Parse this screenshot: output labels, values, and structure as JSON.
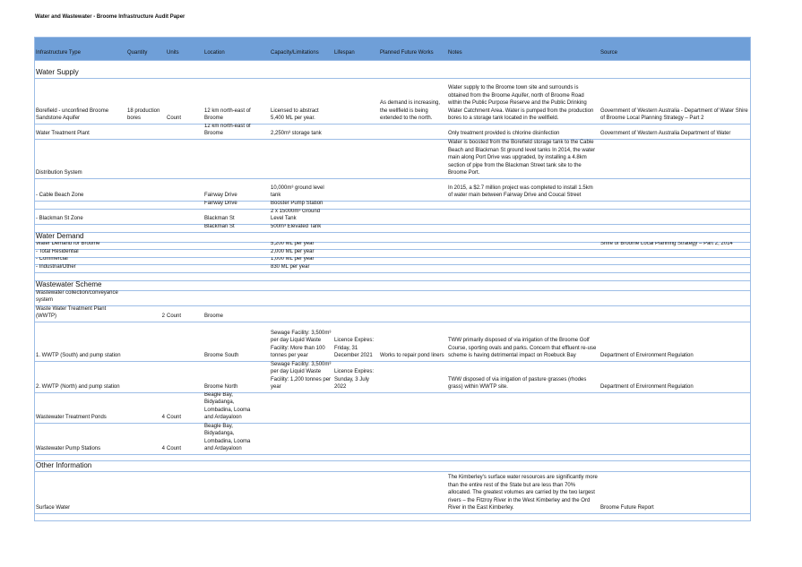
{
  "title": "Water and Wastewater - Broome Infrastructure Audit Paper",
  "table": {
    "header": {
      "type": "Infrastructure Type",
      "quantity": "Quantity",
      "units": "Units",
      "location": "Location",
      "capacity": "Capacity/Limitations",
      "lifespan": "Lifespan",
      "planned": "Planned Future Works",
      "notes": "Notes",
      "source": "Source"
    },
    "rows": [
      {
        "section": "Water Supply"
      },
      {
        "type": "Borefield - unconfined Broome Sandstone Aquifer",
        "quantity": "18 production bores",
        "units": "Count",
        "location": "12 km north-east of Broome",
        "capacity": "Licensed to abstract 5,400 ML per year.",
        "planned": "As demand is increasing, the wellfield is being extended to the north.",
        "notes": "Water supply to the Broome town site and surrounds is obtained from the Broome Aquifer, north of Broome Road within the Public Purpose Reserve and the Public Drinking Water Catchment Area. Water is pumped from the production bores to a storage tank located in the wellfield.",
        "source": "Government of Western Australia - Department of Water Shire of Broome Local Planning Strategy – Part 2"
      },
      {
        "type": "Water Treatment Plant",
        "location": "12 km north-east of Broome",
        "capacity": "2,250m³ storage tank",
        "notes": "Only treatment provided is chlorine disinfection",
        "source": "Government of Western Australia Department of Water"
      },
      {
        "type": "Distribution System",
        "notes": "Water is boosted from the Borefield storage tank to the Cable Beach and Blackman St ground level tanks In 2014, the water main along Port Drive was upgraded, by installing a 4.8km section of pipe from the Blackman Street tank site to the Broome Port."
      },
      {
        "type": "- Cable Beach Zone",
        "location": "Fairway Drive",
        "capacity": "10,000m³ ground level tank",
        "notes": "In 2015, a $2.7 million project was completed to install 1.5km of water main between Fairway Drive and Coucal Street"
      },
      {
        "location": "Fairway Drive",
        "capacity": "Booster Pump Station"
      },
      {
        "type": "- Blackman St Zone",
        "location": "Blackman St",
        "capacity": "2 x 15000m³ Ground Level Tank"
      },
      {
        "location": "Blackman St",
        "capacity": "500m³ Elevated Tank"
      },
      {
        "section": "Water Demand"
      },
      {
        "type": "Water Demand for Broome",
        "capacity": "5,200 ML per year",
        "source": "Shire of Broome Local Planning Strategy – Part 2, 2014"
      },
      {
        "type": "- Total Residential",
        "capacity": "2,000 ML per year"
      },
      {
        "type": "- Commercial",
        "capacity": "1,000 ML per year"
      },
      {
        "type": "- Industrial/Other",
        "capacity": "830 ML per year"
      },
      {
        "section": "Wastewater Scheme"
      },
      {
        "type": "Wastewater collection/conveyance system"
      },
      {
        "type": "Waste Water Treatment Plant (WWTP)",
        "quantity": 2,
        "units": "Count",
        "location": "Broome"
      },
      {
        "type": "1. WWTP (South) and pump station",
        "location": "Broome South",
        "capacity": "Sewage Facility: 3,500m³ per day Liquid Waste Facility: More than 100 tonnes per year",
        "lifespan": "Licence Expires: Friday, 31 December 2021",
        "planned": "Works to repair pond liners",
        "notes": "TWW primarily disposed of via irrigation of the Broome Golf Course, sporting ovals and parks. Concern that effluent re-use scheme is having detrimental impact on Roebuck Bay",
        "source": "Department of Environment Regulation"
      },
      {
        "type": "2. WWTP (North) and pump station",
        "location": "Broome North",
        "capacity": "Sewage Facility: 3,500m³ per day Liquid Waste Facility: 1,200 tonnes per year",
        "lifespan": "Licence Expires: Sunday, 3 July 2022",
        "notes": "TWW disposed of via irrigation of pasture grasses (rhodes grass) within WWTP site.",
        "source": "Department of Environment Regulation"
      },
      {
        "type": "Wastewater Treatment Ponds",
        "quantity": 4,
        "units": "Count",
        "location": "Beagle Bay, Bidyadanga, Lombadina, Looma and Ardayaloon"
      },
      {
        "type": "Wastewater Pump Stations",
        "quantity": 4,
        "units": "Count",
        "location": "Beagle Bay, Bidyadanga, Lombadina, Looma and Ardayaloon"
      },
      {
        "section": "Other Information"
      },
      {
        "type": "Surface Water",
        "notes": "The Kimberley's surface water resources are significantly more than the entire rest of the State but are less than 70% allocated. The greatest volumes are carried by the two largest rivers – the Fitzroy River in the West Kimberley and the Ord River in the East Kimberley.",
        "source": "Broome Future Report"
      }
    ]
  }
}
